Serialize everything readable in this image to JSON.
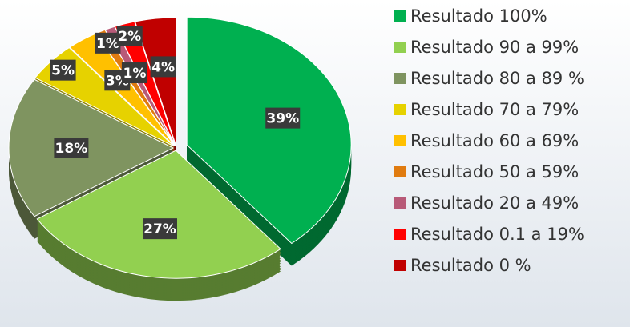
{
  "chart_data": {
    "type": "pie",
    "categories": [
      "Resultado 100%",
      "Resultado 90 a 99%",
      "Resultado 80 a 89 %",
      "Resultado 70 a 79%",
      "Resultado 60 a 69%",
      "Resultado 50 a 59%",
      "Resultado 20 a 49%",
      "Resultado 0.1 a 19%",
      "Resultado 0 %"
    ],
    "values": [
      39,
      27,
      18,
      5,
      3,
      1,
      1,
      2,
      4
    ],
    "value_labels": [
      "39%",
      "27%",
      "18%",
      "5%",
      "3%",
      "1%",
      "1%",
      "2%",
      "4%"
    ],
    "colors": [
      "#00b050",
      "#92d050",
      "#7f9460",
      "#e6d200",
      "#ffc000",
      "#e07b10",
      "#b85a78",
      "#ff0000",
      "#c00000"
    ],
    "legend": "right"
  }
}
